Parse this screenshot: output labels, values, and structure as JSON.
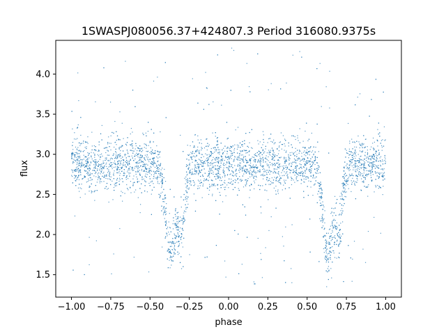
{
  "chart_data": {
    "type": "scatter",
    "title": "1SWASPJ080056.37+424807.3 Period 316080.9375s",
    "xlabel": "phase",
    "ylabel": "flux",
    "xlim": [
      -1.1,
      1.1
    ],
    "ylim": [
      1.22,
      4.42
    ],
    "x_ticks": [
      -1.0,
      -0.75,
      -0.5,
      -0.25,
      0.0,
      0.25,
      0.5,
      0.75,
      1.0
    ],
    "x_tick_labels": [
      "−1.00",
      "−0.75",
      "−0.50",
      "−0.25",
      "0.00",
      "0.25",
      "0.50",
      "0.75",
      "1.00"
    ],
    "y_ticks": [
      1.5,
      2.0,
      2.5,
      3.0,
      3.5,
      4.0
    ],
    "y_tick_labels": [
      "1.5",
      "2.0",
      "2.5",
      "3.0",
      "3.5",
      "4.0"
    ],
    "grid": false,
    "legend": "none",
    "marker_color": "#1f77b4",
    "baseline_flux": 2.87,
    "scatter_sigma": 0.16,
    "dips": [
      {
        "phase": -0.37,
        "depth": 1.1,
        "width": 0.03
      },
      {
        "phase": -0.3,
        "depth": 0.85,
        "width": 0.022
      },
      {
        "phase": 0.63,
        "depth": 1.1,
        "width": 0.03
      },
      {
        "phase": 0.7,
        "depth": 0.85,
        "width": 0.022
      }
    ],
    "phase_range": [
      -1.0,
      1.0
    ],
    "flux_range": [
      1.35,
      4.33
    ]
  }
}
